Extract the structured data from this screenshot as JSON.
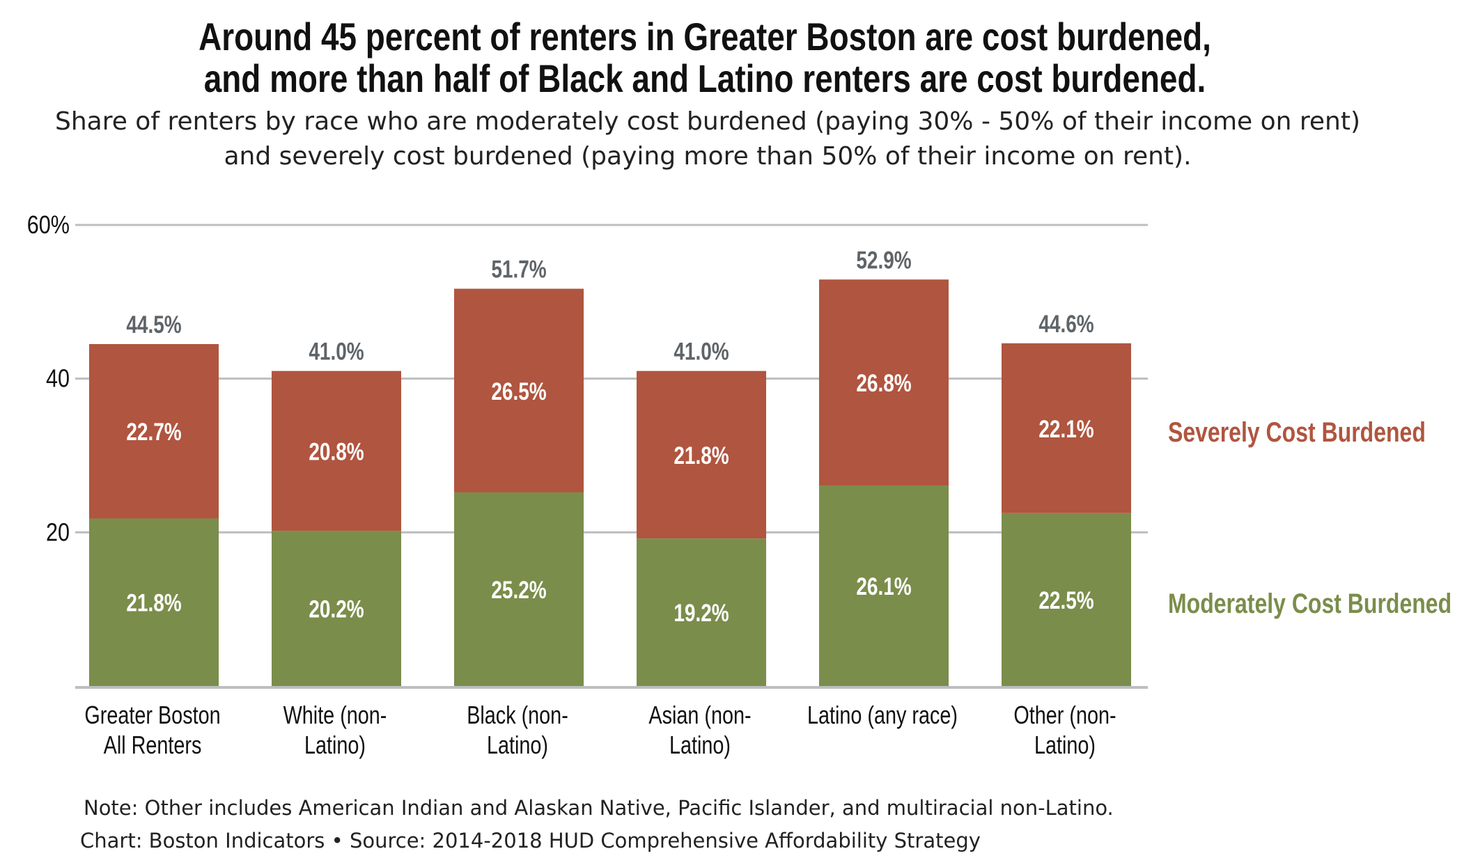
{
  "chart_data": {
    "type": "bar",
    "stacked": true,
    "title": [
      "Around 45 percent of renters in Greater Boston are cost burdened,",
      "and more than half of Black and Latino renters are cost burdened."
    ],
    "subtitle": [
      "Share of renters by race who are moderately cost burdened (paying 30% - 50% of their income on rent)",
      "and severely cost burdened (paying more than 50% of their income on rent)."
    ],
    "categories": [
      [
        "Greater Boston",
        "All Renters"
      ],
      [
        "White (non-",
        "Latino)"
      ],
      [
        "Black (non-",
        "Latino)"
      ],
      [
        "Asian (non-",
        "Latino)"
      ],
      [
        "Latino (any race)",
        ""
      ],
      [
        "Other (non-",
        "Latino)"
      ]
    ],
    "series": [
      {
        "name": "Moderately Cost Burdened",
        "color": "#7B8D4B",
        "values": [
          21.8,
          20.2,
          25.2,
          19.2,
          26.1,
          22.5
        ],
        "labels": [
          "21.8%",
          "20.2%",
          "25.2%",
          "19.2%",
          "26.1%",
          "22.5%"
        ]
      },
      {
        "name": "Severely Cost Burdened",
        "color": "#B0553F",
        "values": [
          22.7,
          20.8,
          26.5,
          21.8,
          26.8,
          22.1
        ],
        "labels": [
          "22.7%",
          "20.8%",
          "26.5%",
          "21.8%",
          "26.8%",
          "22.1%"
        ]
      }
    ],
    "totals": [
      44.5,
      41.0,
      51.7,
      41.0,
      52.9,
      44.6
    ],
    "total_labels": [
      "44.5%",
      "41.0%",
      "51.7%",
      "41.0%",
      "52.9%",
      "44.6%"
    ],
    "yticks": [
      {
        "value": 60,
        "label": "60%"
      },
      {
        "value": 40,
        "label": "40"
      },
      {
        "value": 20,
        "label": "20"
      }
    ],
    "ylim": [
      0,
      60
    ],
    "grid": true,
    "legend": "right, direct labels",
    "notes": [
      "Note: Other includes American Indian and Alaskan Native, Pacific Islander, and multiracial non-Latino.",
      "Chart: Boston Indicators • Source: 2014-2018 HUD Comprehensive Affordability Strategy"
    ]
  }
}
